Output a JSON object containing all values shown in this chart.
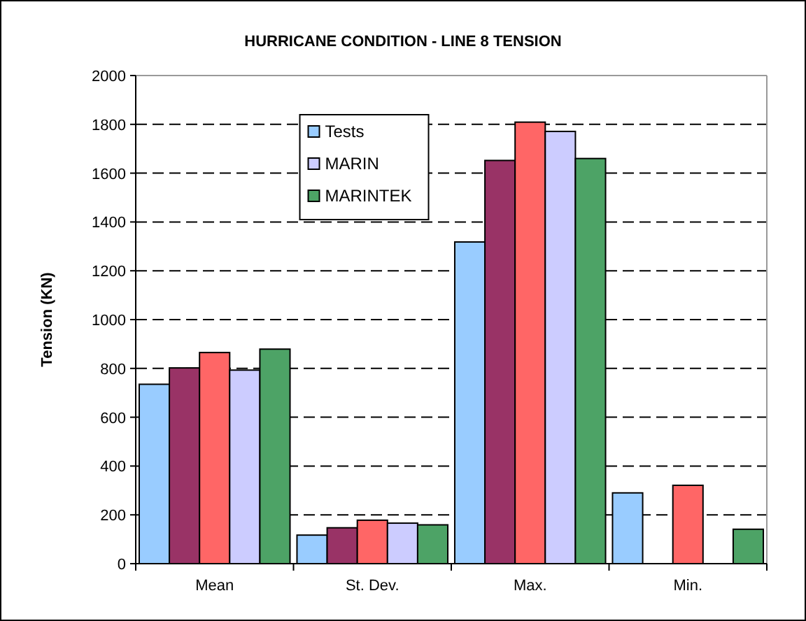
{
  "chart_data": {
    "type": "bar",
    "title": "HURRICANE CONDITION - LINE 8 TENSION",
    "ylabel": "Tension (KN)",
    "categories": [
      "Mean",
      "St. Dev.",
      "Max.",
      "Min."
    ],
    "series": [
      {
        "name": "Tests",
        "color": "#99ccff",
        "values": [
          735,
          117,
          1318,
          290
        ]
      },
      {
        "color": "#993366",
        "values": [
          802,
          147,
          1652,
          null
        ]
      },
      {
        "color": "#ff6666",
        "values": [
          865,
          178,
          1809,
          321
        ]
      },
      {
        "name": "MARIN",
        "color": "#ccccff",
        "values": [
          793,
          166,
          1771,
          null
        ]
      },
      {
        "name": "MARINTEK",
        "color": "#4da366",
        "values": [
          879,
          159,
          1660,
          141
        ]
      }
    ],
    "ylim": [
      0,
      2000
    ],
    "yticks": [
      0,
      200,
      400,
      600,
      800,
      1000,
      1200,
      1400,
      1600,
      1800,
      2000
    ],
    "grid": "y",
    "legend": "top"
  }
}
